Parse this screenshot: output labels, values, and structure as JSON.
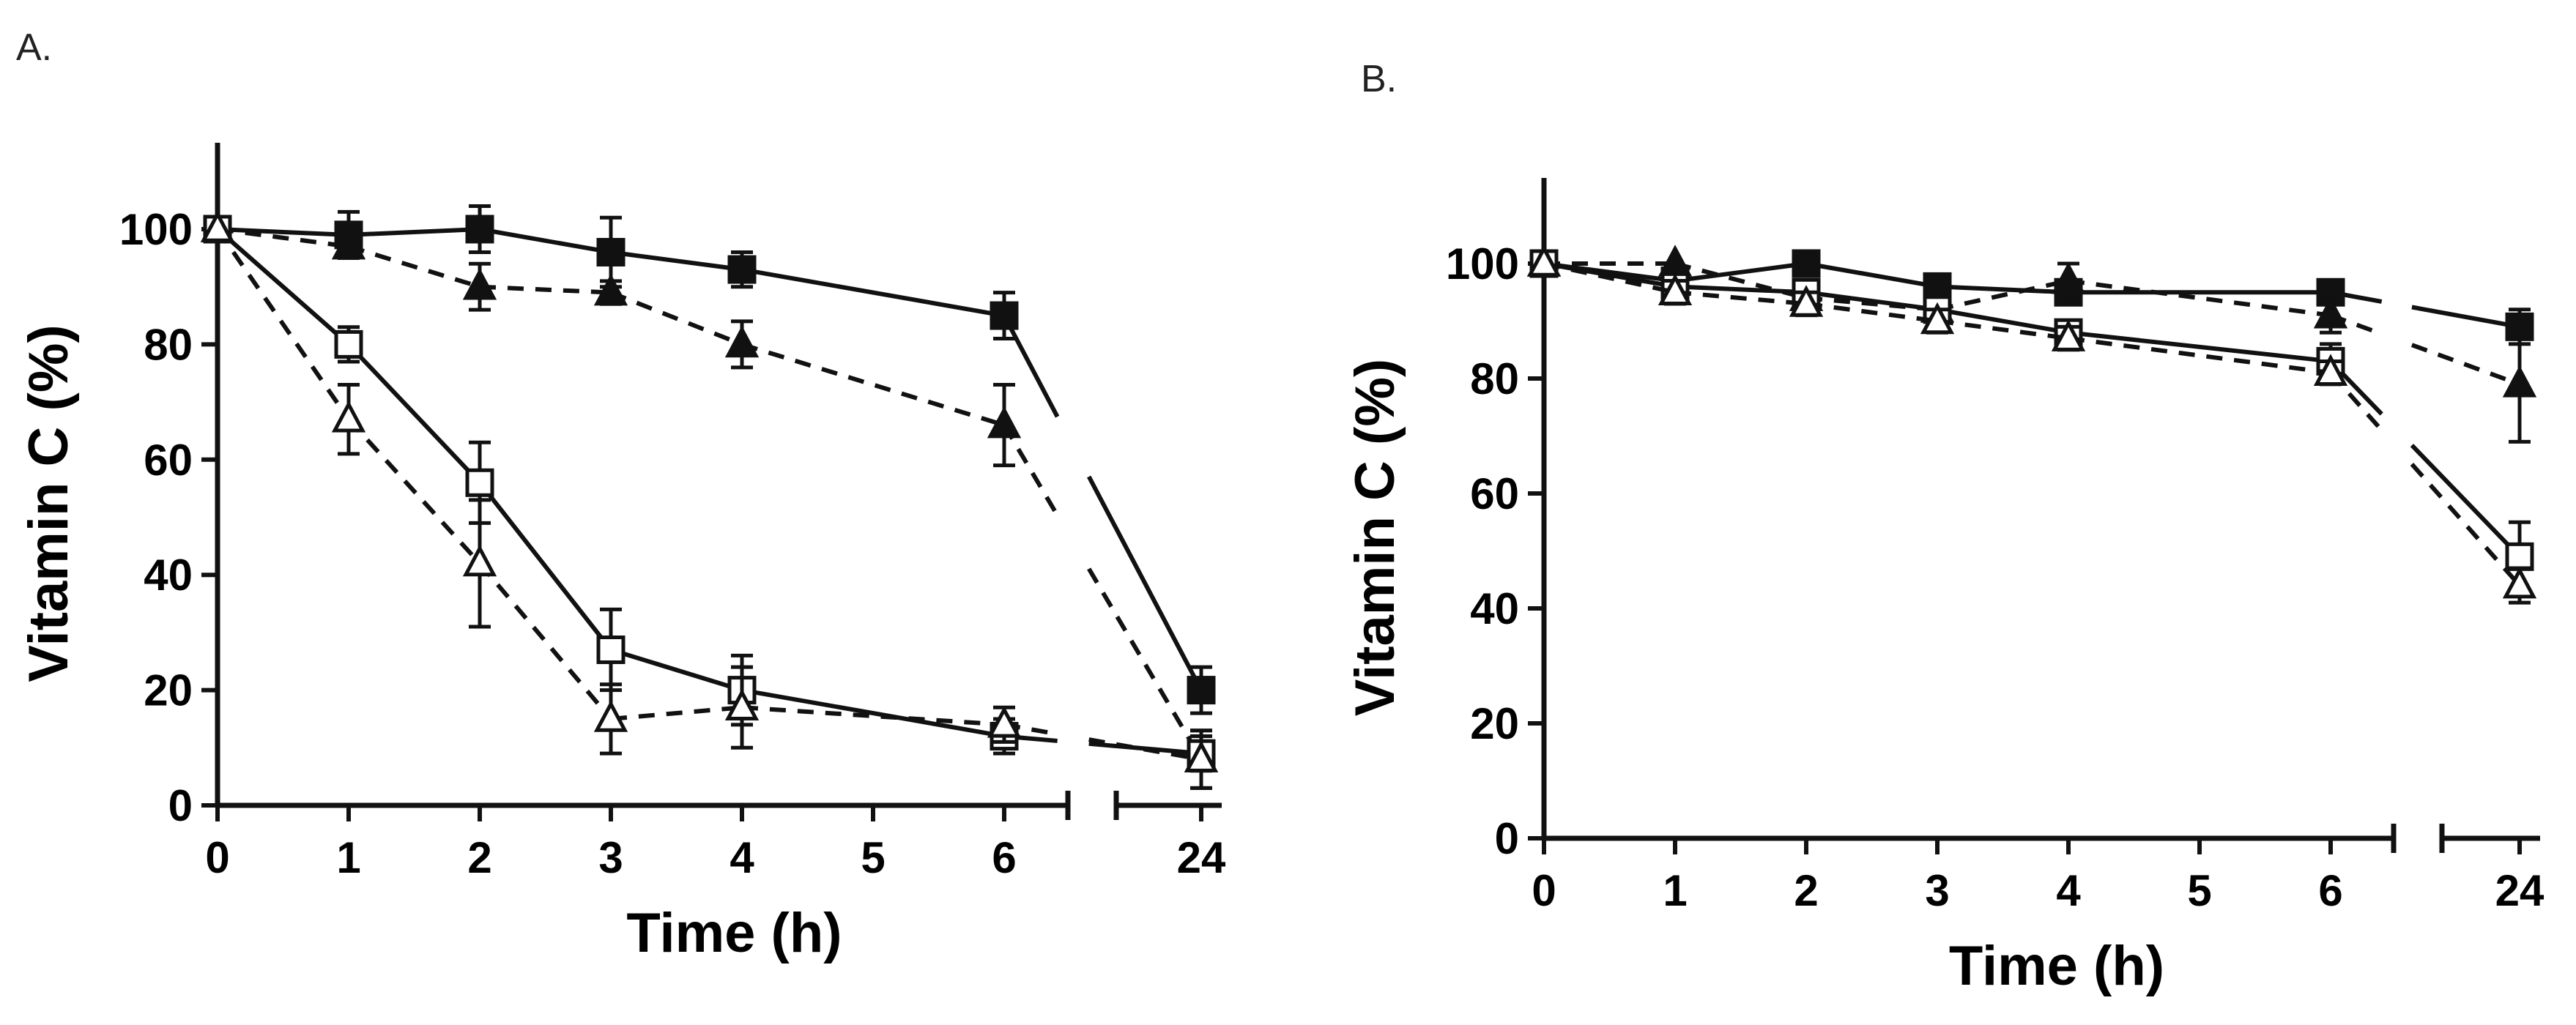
{
  "chart_data": [
    {
      "panel_label": "A.",
      "type": "line",
      "xlabel": "Time (h)",
      "ylabel": "Vitamin C (%)",
      "x_ticks": [
        "0",
        "1",
        "2",
        "3",
        "4",
        "5",
        "6",
        "24"
      ],
      "y_ticks": [
        "0",
        "20",
        "40",
        "60",
        "80",
        "100"
      ],
      "ylim": [
        0,
        115
      ],
      "x_axis_break": "between 6 and 24",
      "series": [
        {
          "name": "filled square",
          "marker": "square-filled",
          "line": "solid",
          "x": [
            0,
            1,
            2,
            3,
            4,
            6,
            24
          ],
          "y": [
            100,
            99,
            100,
            96,
            93,
            85,
            20
          ],
          "err": [
            1,
            4,
            4,
            6,
            3,
            4,
            4
          ]
        },
        {
          "name": "filled triangle",
          "marker": "triangle-filled",
          "line": "dashed",
          "x": [
            0,
            1,
            2,
            3,
            4,
            6,
            24
          ],
          "y": [
            100,
            97,
            90,
            89,
            80,
            66,
            8
          ],
          "err": [
            1,
            2,
            4,
            2,
            4,
            7,
            5
          ]
        },
        {
          "name": "open square",
          "marker": "square-open",
          "line": "solid",
          "x": [
            0,
            1,
            2,
            3,
            4,
            6,
            24
          ],
          "y": [
            100,
            80,
            56,
            27,
            20,
            12,
            9
          ],
          "err": [
            1,
            3,
            7,
            7,
            6,
            3,
            3
          ]
        },
        {
          "name": "open triangle",
          "marker": "triangle-open",
          "line": "dashed",
          "x": [
            0,
            1,
            2,
            3,
            4,
            6,
            24
          ],
          "y": [
            100,
            67,
            42,
            15,
            17,
            14,
            8
          ],
          "err": [
            1,
            6,
            11,
            6,
            7,
            3,
            5
          ]
        }
      ]
    },
    {
      "panel_label": "B.",
      "type": "line",
      "xlabel": "Time (h)",
      "ylabel": "Vitamin C (%)",
      "x_ticks": [
        "0",
        "1",
        "2",
        "3",
        "4",
        "5",
        "6",
        "24"
      ],
      "y_ticks": [
        "0",
        "20",
        "40",
        "60",
        "80",
        "100"
      ],
      "ylim": [
        0,
        115
      ],
      "x_axis_break": "between 6 and 24",
      "series": [
        {
          "name": "filled square",
          "marker": "square-filled",
          "line": "solid",
          "x": [
            0,
            1,
            2,
            3,
            4,
            6,
            24
          ],
          "y": [
            100,
            97,
            100,
            96,
            95,
            95,
            89
          ],
          "err": [
            1,
            2,
            2,
            2,
            2,
            2,
            3
          ]
        },
        {
          "name": "filled triangle",
          "marker": "triangle-filled",
          "line": "dashed",
          "x": [
            0,
            1,
            2,
            3,
            4,
            6,
            24
          ],
          "y": [
            100,
            100,
            94,
            92,
            97,
            91,
            79
          ],
          "err": [
            1,
            1,
            2,
            2,
            3,
            3,
            10
          ]
        },
        {
          "name": "open square",
          "marker": "square-open",
          "line": "solid",
          "x": [
            0,
            1,
            2,
            3,
            4,
            6,
            24
          ],
          "y": [
            100,
            96,
            95,
            92,
            88,
            83,
            49
          ],
          "err": [
            1,
            2,
            2,
            2,
            2,
            3,
            6
          ]
        },
        {
          "name": "open triangle",
          "marker": "triangle-open",
          "line": "dashed",
          "x": [
            0,
            1,
            2,
            3,
            4,
            6,
            24
          ],
          "y": [
            100,
            95,
            93,
            90,
            87,
            81,
            44
          ],
          "err": [
            1,
            2,
            2,
            2,
            2,
            2,
            3
          ]
        }
      ]
    }
  ]
}
